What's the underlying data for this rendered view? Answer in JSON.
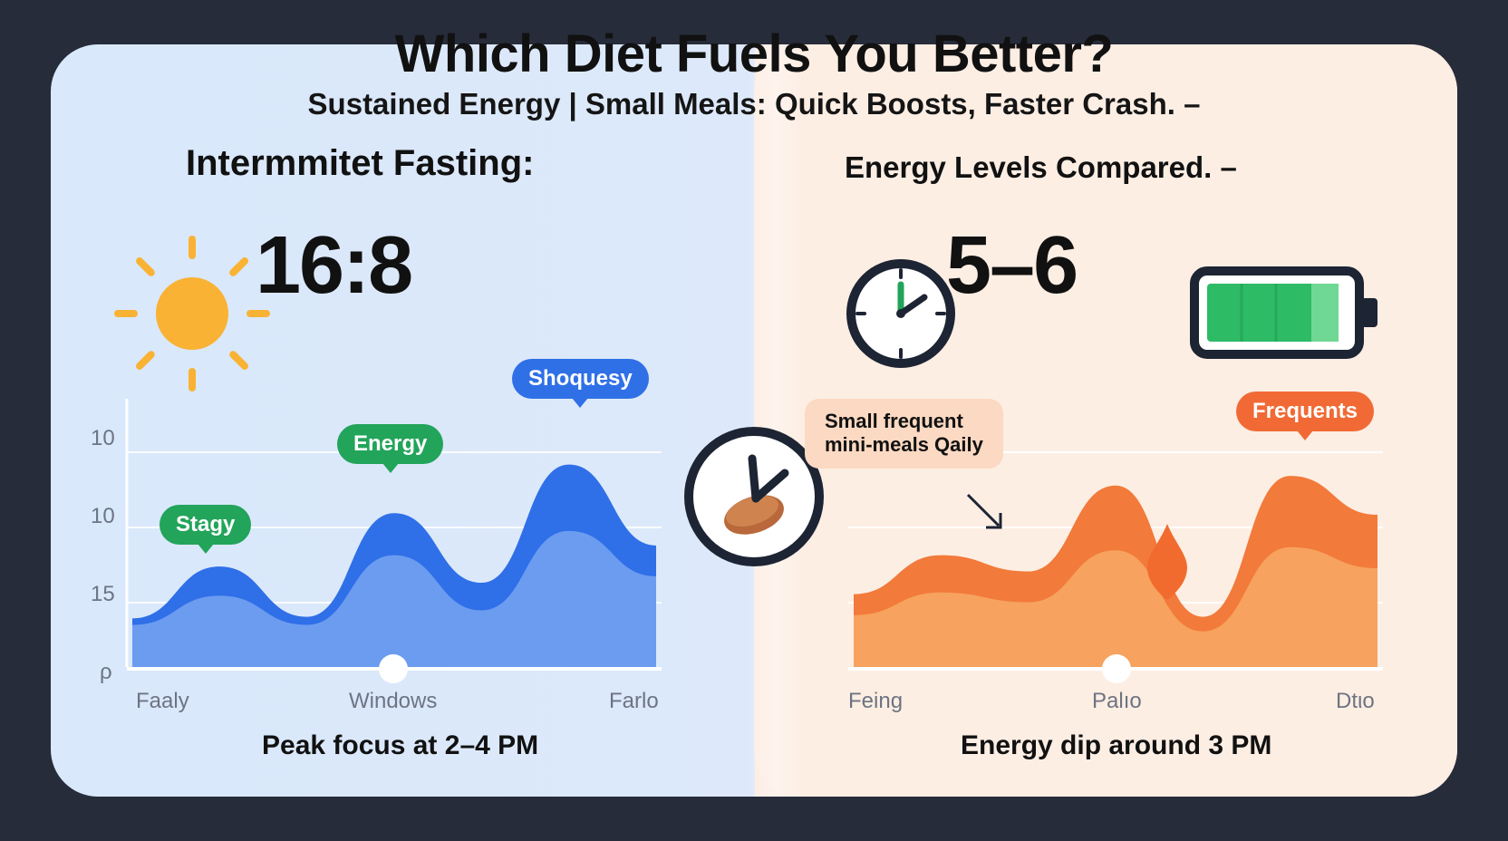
{
  "header": {
    "title": "Which Diet Fuels You Better?",
    "subtitle": "Sustained Energy | Small Meals: Quick Boosts, Faster Crash.  –"
  },
  "left": {
    "section_title": "Intermmitet Fasting:",
    "big_number": "16:8",
    "icon": "sun-icon",
    "caption": "Peak focus at 2–4 PM",
    "bubbles": [
      "Stagy",
      "Energy",
      "Shoquesy"
    ]
  },
  "right": {
    "section_title": "Energy Levels Compared. –",
    "big_number": "5–6",
    "icons": [
      "clock-icon",
      "battery-icon"
    ],
    "battery_level": 0.9,
    "caption": "Energy dip around 3 PM",
    "note": [
      "Small frequent",
      "mini-meals Qaily"
    ],
    "bubbles": [
      "Frequents"
    ]
  },
  "center_icon": "clock-icon",
  "colors": {
    "left_bg": "#dce9fb",
    "right_bg": "#fdede3",
    "blue_dark": "#2f6fe8",
    "blue_light": "#6b9cf0",
    "orange_dark": "#f27a3a",
    "orange_light": "#f7a25e",
    "green": "#22a45a",
    "sun": "#f9b233"
  },
  "chart_data": [
    {
      "type": "area",
      "title": "Intermmitet Fasting",
      "y_tick_labels": [
        "10",
        "10",
        "15",
        "ρ"
      ],
      "x_tick_labels": [
        "Faaly",
        "Windows",
        "Farlo"
      ],
      "x": [
        0,
        0.75,
        1.5,
        2.25,
        3,
        3.75,
        4.5,
        5.25,
        6
      ],
      "series": [
        {
          "values": [
            3.0,
            6.2,
            3.1,
            9.5,
            5.2,
            12.5,
            7.5,
            null,
            null
          ]
        },
        {
          "values": [
            2.6,
            4.4,
            2.6,
            6.9,
            3.5,
            8.4,
            5.6,
            null,
            null
          ]
        }
      ],
      "ylim": [
        0,
        16
      ],
      "grid": true
    },
    {
      "type": "area",
      "title": "Energy Levels Compared",
      "x_tick_labels": [
        "Feing",
        "Palıo",
        "Dtιo"
      ],
      "series": [
        {
          "values": [
            4.5,
            6.9,
            5.9,
            11.2,
            3.1,
            11.8,
            9.4,
            null,
            null
          ]
        },
        {
          "values": [
            3.2,
            4.6,
            4.0,
            7.2,
            2.2,
            7.4,
            6.1,
            null,
            null
          ]
        }
      ],
      "ylim": [
        0,
        16
      ],
      "grid": true
    }
  ]
}
